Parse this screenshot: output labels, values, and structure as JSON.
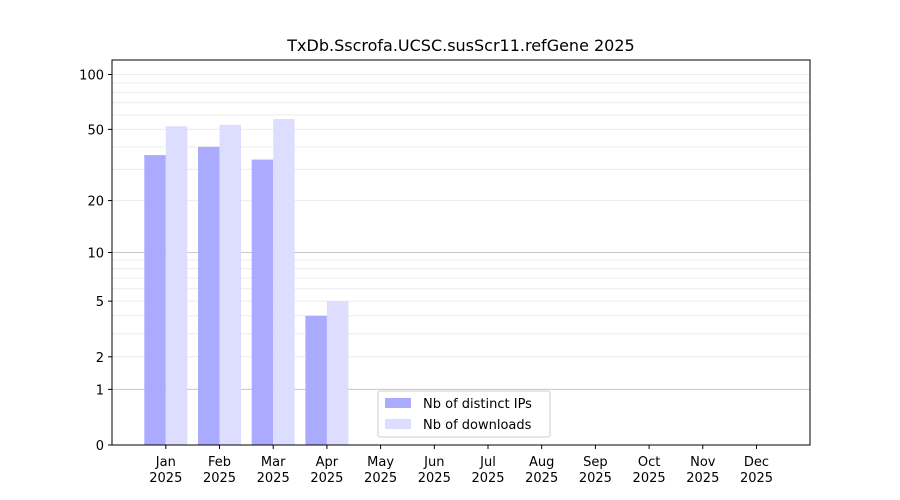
{
  "chart_data": {
    "type": "bar",
    "title": "TxDb.Sscrofa.UCSC.susScr11.refGene 2025",
    "xlabel": "",
    "ylabel": "",
    "y_scale": "symlog",
    "y_ticks": [
      0,
      1,
      2,
      5,
      10,
      20,
      50,
      100
    ],
    "y_max": 120,
    "grid": "horizontal",
    "legend_position": "bottom-center",
    "categories": [
      {
        "month": "Jan",
        "year": "2025"
      },
      {
        "month": "Feb",
        "year": "2025"
      },
      {
        "month": "Mar",
        "year": "2025"
      },
      {
        "month": "Apr",
        "year": "2025"
      },
      {
        "month": "May",
        "year": "2025"
      },
      {
        "month": "Jun",
        "year": "2025"
      },
      {
        "month": "Jul",
        "year": "2025"
      },
      {
        "month": "Aug",
        "year": "2025"
      },
      {
        "month": "Sep",
        "year": "2025"
      },
      {
        "month": "Oct",
        "year": "2025"
      },
      {
        "month": "Nov",
        "year": "2025"
      },
      {
        "month": "Dec",
        "year": "2025"
      }
    ],
    "series": [
      {
        "name": "Nb of distinct IPs",
        "color": "#aaaaff",
        "values": [
          36,
          40,
          34,
          4,
          0,
          0,
          0,
          0,
          0,
          0,
          0,
          0
        ]
      },
      {
        "name": "Nb of downloads",
        "color": "#ddddff",
        "values": [
          52,
          53,
          57,
          5,
          0,
          0,
          0,
          0,
          0,
          0,
          0,
          0
        ]
      }
    ]
  }
}
